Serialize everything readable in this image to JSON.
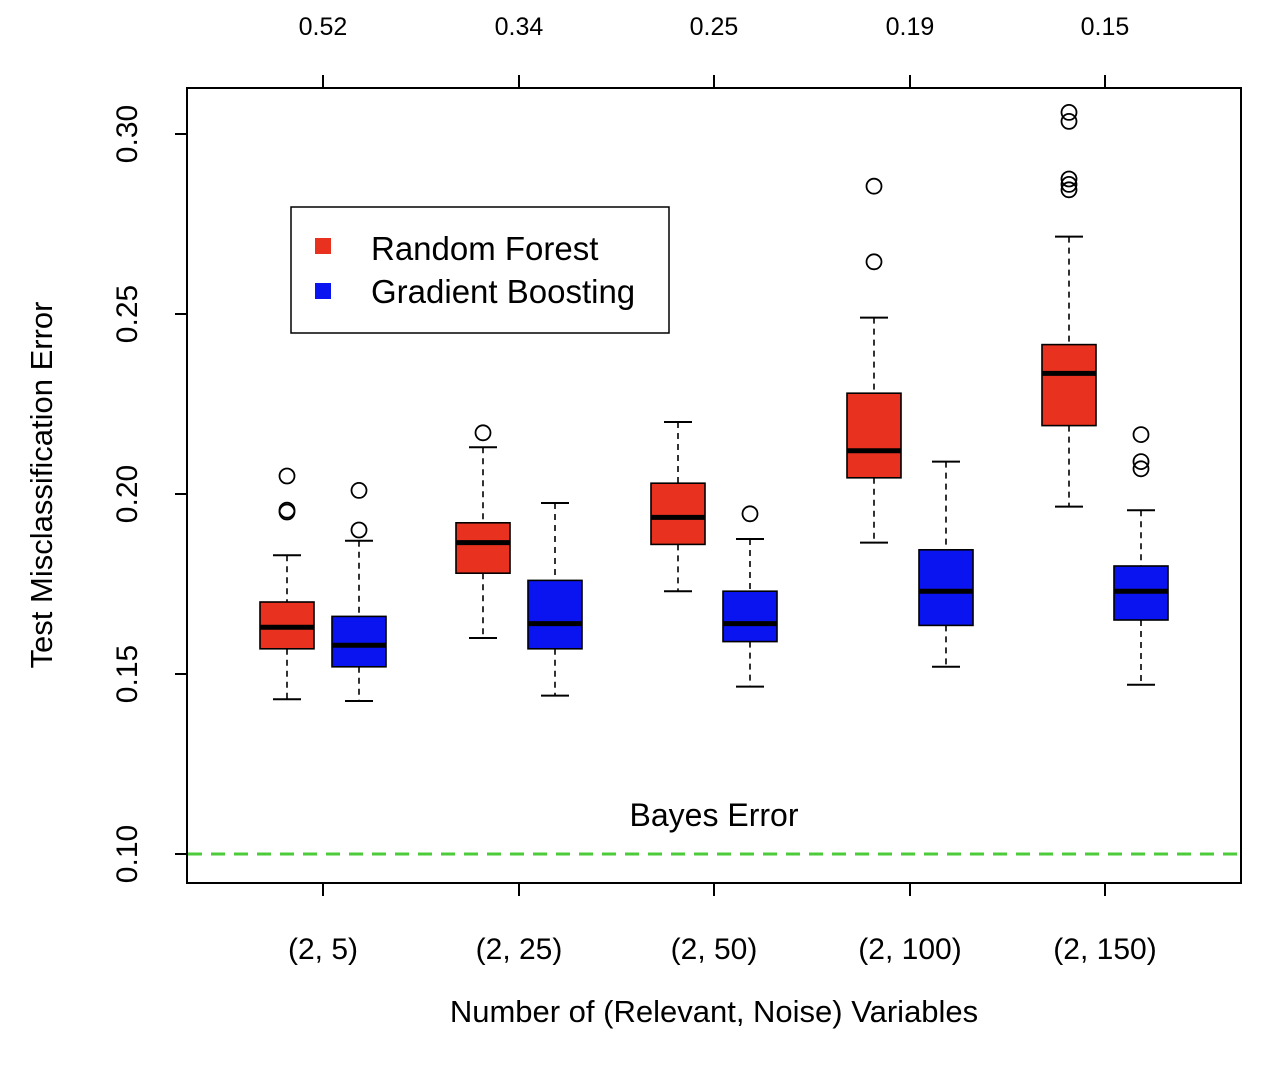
{
  "chart_data": {
    "type": "boxplot",
    "xlabel": "Number of (Relevant, Noise) Variables",
    "ylabel": "Test Misclassification Error",
    "ylim": [
      0.092,
      0.313
    ],
    "yticks": [
      0.1,
      0.15,
      0.2,
      0.25,
      0.3
    ],
    "ytick_labels": [
      "0.10",
      "0.15",
      "0.20",
      "0.25",
      "0.30"
    ],
    "categories": [
      "(2, 5)",
      "(2, 25)",
      "(2, 50)",
      "(2, 100)",
      "(2, 150)"
    ],
    "top_axis_labels": [
      "0.52",
      "0.34",
      "0.25",
      "0.19",
      "0.15"
    ],
    "reference_line": {
      "label": "Bayes Error",
      "value": 0.1,
      "color": "#4ccc3a",
      "style": "dashed"
    },
    "legend": {
      "position": "top-left",
      "entries": [
        {
          "label": "Random Forest",
          "color": "#e8321f"
        },
        {
          "label": "Gradient Boosting",
          "color": "#0a14f0"
        }
      ]
    },
    "series": [
      {
        "name": "Random Forest",
        "color": "#e8321f",
        "boxes": [
          {
            "whisker_low": 0.143,
            "q1": 0.157,
            "median": 0.163,
            "q3": 0.17,
            "whisker_high": 0.183,
            "outliers": [
              0.195,
              0.1955,
              0.205
            ]
          },
          {
            "whisker_low": 0.16,
            "q1": 0.178,
            "median": 0.1865,
            "q3": 0.192,
            "whisker_high": 0.213,
            "outliers": [
              0.217
            ]
          },
          {
            "whisker_low": 0.173,
            "q1": 0.186,
            "median": 0.1935,
            "q3": 0.203,
            "whisker_high": 0.22,
            "outliers": []
          },
          {
            "whisker_low": 0.1865,
            "q1": 0.2045,
            "median": 0.212,
            "q3": 0.228,
            "whisker_high": 0.249,
            "outliers": [
              0.2645,
              0.2855
            ]
          },
          {
            "whisker_low": 0.1965,
            "q1": 0.219,
            "median": 0.2335,
            "q3": 0.2415,
            "whisker_high": 0.2715,
            "outliers": [
              0.2845,
              0.286,
              0.2875,
              0.3035,
              0.306
            ]
          }
        ]
      },
      {
        "name": "Gradient Boosting",
        "color": "#0a14f0",
        "boxes": [
          {
            "whisker_low": 0.1425,
            "q1": 0.152,
            "median": 0.158,
            "q3": 0.166,
            "whisker_high": 0.187,
            "outliers": [
              0.19,
              0.201
            ]
          },
          {
            "whisker_low": 0.144,
            "q1": 0.157,
            "median": 0.164,
            "q3": 0.176,
            "whisker_high": 0.1975,
            "outliers": []
          },
          {
            "whisker_low": 0.1465,
            "q1": 0.159,
            "median": 0.164,
            "q3": 0.173,
            "whisker_high": 0.1875,
            "outliers": [
              0.1945
            ]
          },
          {
            "whisker_low": 0.152,
            "q1": 0.1635,
            "median": 0.173,
            "q3": 0.1845,
            "whisker_high": 0.209,
            "outliers": []
          },
          {
            "whisker_low": 0.147,
            "q1": 0.165,
            "median": 0.173,
            "q3": 0.18,
            "whisker_high": 0.1955,
            "outliers": [
              0.207,
              0.209,
              0.2165
            ]
          }
        ]
      }
    ]
  }
}
